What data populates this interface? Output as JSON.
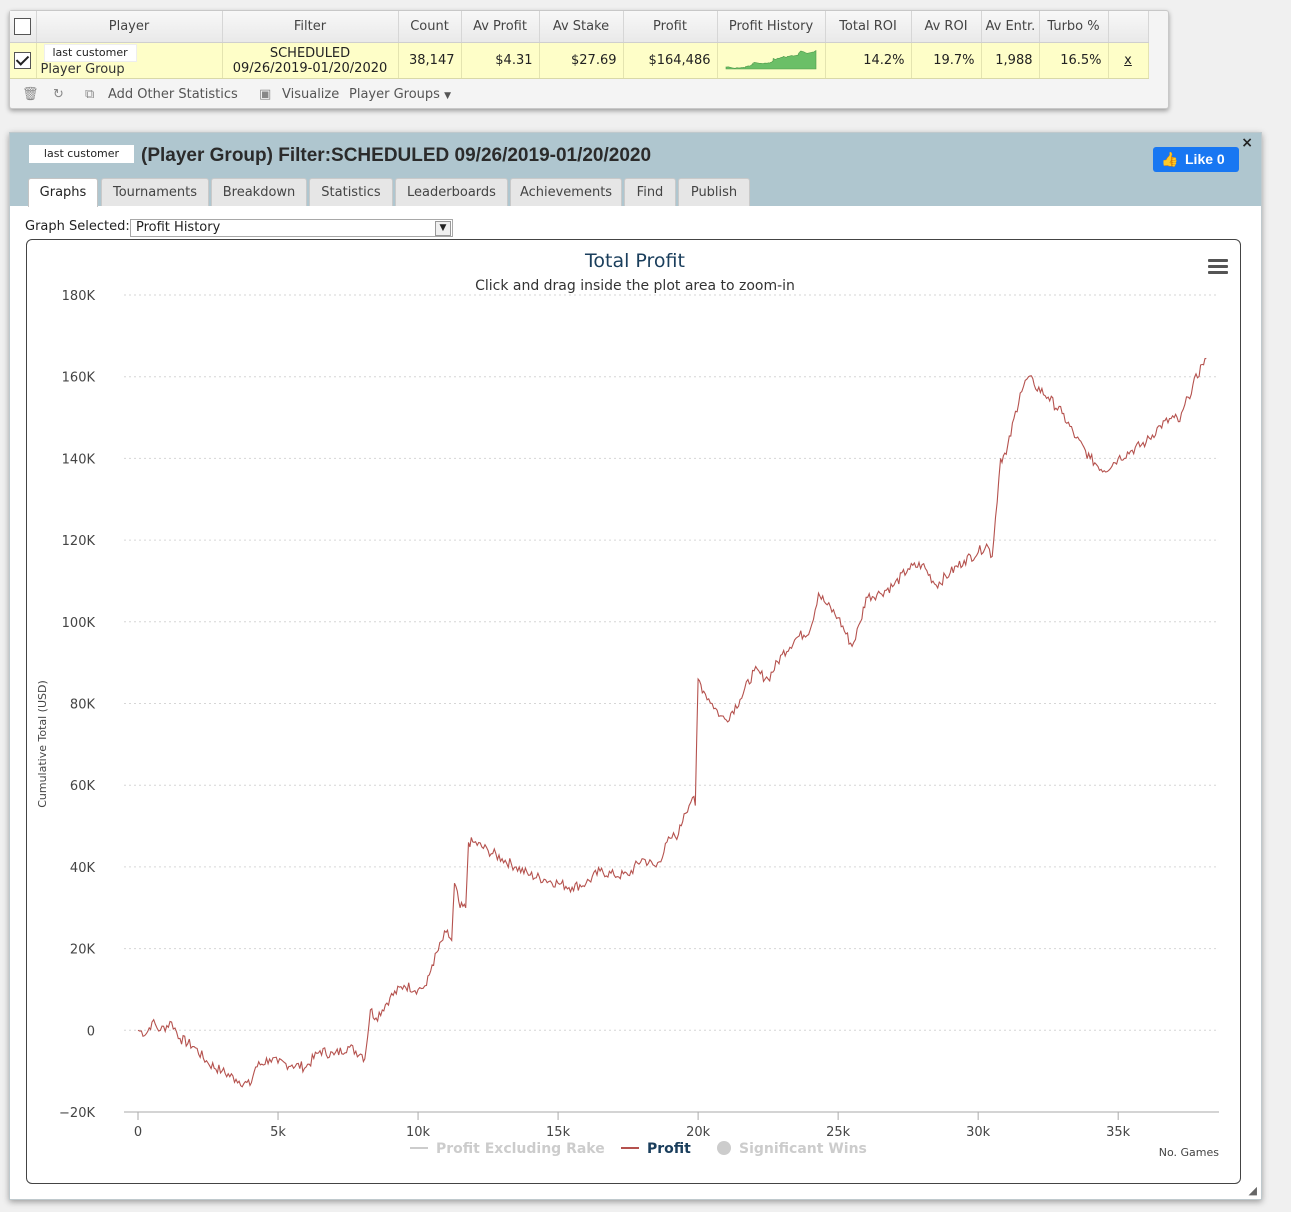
{
  "results": {
    "headers": {
      "player": "Player",
      "filter": "Filter",
      "count": "Count",
      "av_profit": "Av Profit",
      "av_stake": "Av Stake",
      "profit": "Profit",
      "profit_history": "Profit History",
      "total_roi": "Total ROI",
      "av_roi": "Av ROI",
      "av_entrants": "Av Entr.",
      "turbo": "Turbo %"
    },
    "row": {
      "name_tag": "last customer",
      "group": "Player Group",
      "filter_line1": "SCHEDULED",
      "filter_line2": "09/26/2019-01/20/2020",
      "count": "38,147",
      "av_profit": "$4.31",
      "av_stake": "$27.69",
      "profit": "$164,486",
      "total_roi": "14.2%",
      "av_roi": "19.7%",
      "av_entrants": "1,988",
      "turbo": "16.5%",
      "remove": "x"
    },
    "toolbar": {
      "add_stats": "Add Other Statistics",
      "visualize": "Visualize",
      "player_groups": "Player Groups"
    }
  },
  "panel": {
    "name_tag": "last customer",
    "title": "(Player Group) Filter:SCHEDULED 09/26/2019-01/20/2020",
    "like_label": "Like",
    "like_count": "0",
    "close": "×",
    "tabs": [
      "Graphs",
      "Tournaments",
      "Breakdown",
      "Statistics",
      "Leaderboards",
      "Achievements",
      "Find",
      "Publish"
    ],
    "graph_selected_label": "Graph Selected:",
    "graph_selected_value": "Profit History"
  },
  "colors": {
    "profit_line": "#b5524e",
    "title": "#1a3e5c",
    "header_bg": "#afc6cf",
    "row_bg": "#fefec8",
    "sparkline": "#6bbf67",
    "like": "#1877f2"
  },
  "chart_data": {
    "type": "line",
    "title": "Total Profit",
    "subtitle": "Click and drag inside the plot area to zoom-in",
    "xlabel": "No. Games",
    "ylabel": "Cumulative Total (USD)",
    "xlim": [
      -500,
      38600
    ],
    "ylim": [
      -20000,
      180000
    ],
    "x_ticks": [
      0,
      5000,
      10000,
      15000,
      20000,
      25000,
      30000,
      35000
    ],
    "x_tick_labels": [
      "0",
      "5k",
      "10k",
      "15k",
      "20k",
      "25k",
      "30k",
      "35k"
    ],
    "y_ticks": [
      -20000,
      0,
      20000,
      40000,
      60000,
      80000,
      100000,
      120000,
      140000,
      160000,
      180000
    ],
    "y_tick_labels": [
      "−20K",
      "0",
      "20K",
      "40K",
      "60K",
      "80K",
      "100K",
      "120K",
      "140K",
      "160K",
      "180K"
    ],
    "grid": "horizontal dotted",
    "legend": {
      "position": "bottom-center",
      "items": [
        {
          "label": "Profit Excluding Rake",
          "state": "hidden"
        },
        {
          "label": "Profit",
          "state": "visible"
        },
        {
          "label": "Significant Wins",
          "state": "hidden"
        }
      ]
    },
    "series": [
      {
        "name": "Profit",
        "x": [
          0,
          300,
          500,
          800,
          1200,
          1500,
          2000,
          2500,
          3000,
          3500,
          4000,
          4200,
          4700,
          5000,
          5500,
          6000,
          6500,
          7000,
          7500,
          8000,
          8100,
          8300,
          8500,
          9000,
          9500,
          10000,
          10300,
          10500,
          11000,
          11200,
          11300,
          11500,
          11700,
          11800,
          12000,
          12500,
          13000,
          13500,
          14000,
          14500,
          15000,
          15500,
          16000,
          16500,
          17000,
          17500,
          18000,
          18500,
          19000,
          19300,
          19500,
          19800,
          19900,
          20000,
          20200,
          20500,
          20800,
          21000,
          21500,
          22000,
          22500,
          23000,
          23500,
          24000,
          24300,
          24500,
          25000,
          25500,
          25800,
          26000,
          26500,
          27000,
          27500,
          28000,
          28500,
          29000,
          29500,
          30000,
          30300,
          30500,
          30800,
          31000,
          31500,
          31800,
          32000,
          32500,
          33000,
          33500,
          34000,
          34500,
          35000,
          35500,
          36000,
          36500,
          37000,
          37200,
          37500,
          38000,
          38147
        ],
        "values": [
          0,
          -800,
          2000,
          0,
          2000,
          -2000,
          -4000,
          -8000,
          -10000,
          -12000,
          -13500,
          -9000,
          -7000,
          -8000,
          -8500,
          -9000,
          -5000,
          -6000,
          -4000,
          -6000,
          -7000,
          5000,
          3000,
          8000,
          11000,
          10000,
          11000,
          16000,
          24000,
          22000,
          36000,
          30000,
          30000,
          46000,
          46000,
          44000,
          42000,
          40000,
          38000,
          37000,
          36000,
          35000,
          36000,
          39000,
          38000,
          38000,
          42000,
          40000,
          47000,
          48000,
          53000,
          57000,
          55000,
          86000,
          83000,
          80000,
          77000,
          76000,
          81000,
          88000,
          86000,
          92000,
          96000,
          98000,
          107000,
          105000,
          101000,
          94000,
          100000,
          106000,
          107000,
          109000,
          113000,
          114000,
          109000,
          112000,
          115000,
          117000,
          119000,
          116000,
          140000,
          141000,
          156000,
          160000,
          158000,
          155000,
          151000,
          145000,
          140000,
          137000,
          140000,
          142000,
          144000,
          148000,
          150000,
          149000,
          155000,
          163000,
          164486
        ]
      }
    ]
  }
}
